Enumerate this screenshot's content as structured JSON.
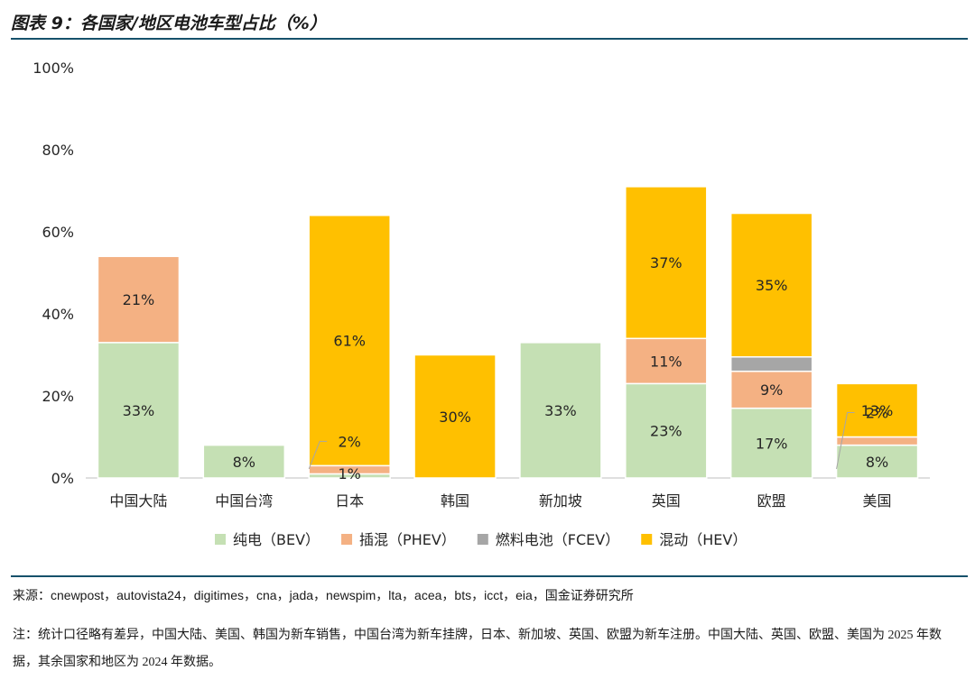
{
  "title": "图表 9：各国家/地区电池车型占比（%）",
  "chart_data": {
    "type": "bar",
    "stacked": true,
    "categories": [
      "中国大陆",
      "中国台湾",
      "日本",
      "韩国",
      "新加坡",
      "英国",
      "欧盟",
      "美国"
    ],
    "series": [
      {
        "name": "纯电（BEV）",
        "color": "#c5e0b4",
        "values": [
          33,
          8,
          1,
          0,
          33,
          23,
          17,
          8
        ],
        "labels": [
          "33%",
          "8%",
          "1%",
          "",
          "33%",
          "23%",
          "17%",
          "8%"
        ]
      },
      {
        "name": "插混（PHEV）",
        "color": "#f4b183",
        "values": [
          21,
          0,
          2,
          0,
          0,
          11,
          9,
          2
        ],
        "labels": [
          "21%",
          "",
          "2%",
          "",
          "",
          "11%",
          "9%",
          "2%"
        ]
      },
      {
        "name": "燃料电池（FCEV）",
        "color": "#a6a6a6",
        "values": [
          0,
          0,
          0,
          0,
          0,
          0,
          3.5,
          0
        ],
        "labels": [
          "",
          "",
          "",
          "",
          "",
          "",
          "",
          ""
        ]
      },
      {
        "name": "混动（HEV）",
        "color": "#ffc000",
        "values": [
          0,
          0,
          61,
          30,
          0,
          37,
          35,
          13
        ],
        "labels": [
          "",
          "",
          "61%",
          "30%",
          "",
          "37%",
          "35%",
          "13%"
        ]
      }
    ],
    "yticks": [
      "0%",
      "20%",
      "40%",
      "60%",
      "80%",
      "100%"
    ],
    "ylim": [
      0,
      100
    ],
    "grid": false,
    "legend_position": "bottom"
  },
  "source": "来源：cnewpost，autovista24，digitimes，cna，jada，newspim，lta，acea，bts，icct，eia，国金证券研究所",
  "note": "注：统计口径略有差异，中国大陆、美国、韩国为新车销售，中国台湾为新车挂牌，日本、新加坡、英国、欧盟为新车注册。中国大陆、英国、欧盟、美国为 2025 年数据，其余国家和地区为 2024 年数据。"
}
